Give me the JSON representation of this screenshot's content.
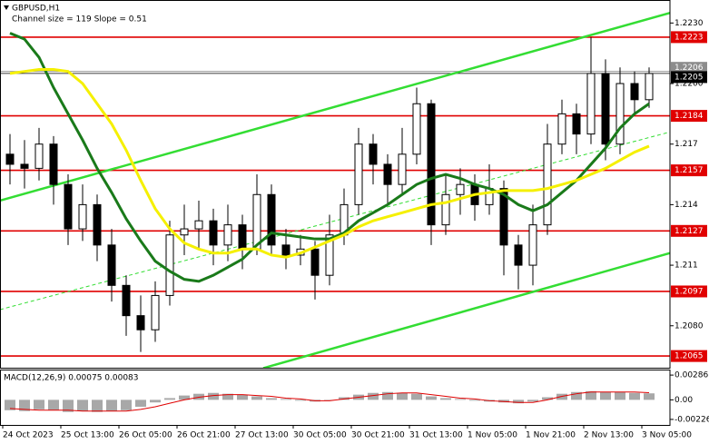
{
  "chart_data": [
    {
      "type": "candlestick",
      "title": "GBPUSD,H1",
      "subtitle": "Channel size = 119 Slope = 0.51",
      "x": [
        "24 Oct 2023",
        null,
        null,
        null,
        "25 Oct 13:00",
        null,
        null,
        null,
        "26 Oct 05:00",
        null,
        null,
        null,
        "26 Oct 21:00",
        null,
        null,
        null,
        "27 Oct 13:00",
        null,
        null,
        null,
        "30 Oct 05:00",
        null,
        null,
        null,
        "30 Oct 21:00",
        null,
        null,
        null,
        "31 Oct 13:00",
        null,
        null,
        null,
        "1 Nov 05:00",
        null,
        null,
        null,
        "1 Nov 21:00",
        null,
        null,
        null,
        "2 Nov 13:00",
        null,
        null,
        null,
        "3 Nov 05:00"
      ],
      "open": [
        1.2165,
        1.216,
        1.2158,
        1.217,
        1.215,
        1.2128,
        1.214,
        1.212,
        1.21,
        1.2085,
        1.2078,
        1.2095,
        1.2125,
        1.2128,
        1.2132,
        1.212,
        1.213,
        1.2118,
        1.2145,
        1.212,
        1.2115,
        1.2118,
        1.2105,
        1.2125,
        1.214,
        1.217,
        1.216,
        1.215,
        1.2165,
        1.219,
        1.213,
        1.2145,
        1.215,
        1.214,
        1.2148,
        1.212,
        1.211,
        1.213,
        1.217,
        1.2185,
        1.2175,
        1.2205,
        1.217,
        1.22,
        1.2192
      ],
      "high": [
        1.2175,
        1.2172,
        1.2178,
        1.2174,
        1.2155,
        1.215,
        1.2145,
        1.2128,
        1.2105,
        1.2095,
        1.2102,
        1.2132,
        1.214,
        1.2142,
        1.2138,
        1.214,
        1.2135,
        1.2155,
        1.215,
        1.2128,
        1.2125,
        1.2122,
        1.2135,
        1.2148,
        1.2178,
        1.2175,
        1.2165,
        1.2178,
        1.2198,
        1.2192,
        1.2155,
        1.2158,
        1.2155,
        1.216,
        1.2152,
        1.2125,
        1.214,
        1.218,
        1.2192,
        1.219,
        1.2223,
        1.2212,
        1.2208,
        1.2206,
        1.2208
      ],
      "low": [
        1.215,
        1.2148,
        1.2152,
        1.214,
        1.212,
        1.2122,
        1.2112,
        1.2092,
        1.2075,
        1.2067,
        1.2072,
        1.209,
        1.2115,
        1.2118,
        1.211,
        1.2112,
        1.2108,
        1.2115,
        1.2115,
        1.2108,
        1.211,
        1.2093,
        1.21,
        1.212,
        1.2135,
        1.215,
        1.214,
        1.2145,
        1.216,
        1.212,
        1.2125,
        1.2135,
        1.2132,
        1.2135,
        1.2105,
        1.2098,
        1.21,
        1.2125,
        1.2165,
        1.2165,
        1.217,
        1.2162,
        1.2165,
        1.2185,
        1.2188
      ],
      "close": [
        1.216,
        1.2158,
        1.217,
        1.215,
        1.2128,
        1.214,
        1.212,
        1.21,
        1.2085,
        1.2078,
        1.2095,
        1.2125,
        1.2128,
        1.2132,
        1.212,
        1.213,
        1.2118,
        1.2145,
        1.212,
        1.2115,
        1.2118,
        1.2105,
        1.2125,
        1.214,
        1.217,
        1.216,
        1.215,
        1.2165,
        1.219,
        1.213,
        1.2145,
        1.215,
        1.214,
        1.2148,
        1.212,
        1.211,
        1.213,
        1.217,
        1.2185,
        1.2175,
        1.2205,
        1.217,
        1.22,
        1.2192,
        1.2205
      ],
      "moving_averages": [
        {
          "color": "#1a7a1a",
          "values": [
            1.2225,
            1.2222,
            1.2213,
            1.2198,
            1.2185,
            1.2172,
            1.2158,
            1.2146,
            1.2133,
            1.2122,
            1.2112,
            1.2107,
            1.2103,
            1.2102,
            1.2105,
            1.2109,
            1.2113,
            1.212,
            1.2126,
            1.2125,
            1.2124,
            1.2123,
            1.2123,
            1.2126,
            1.2132,
            1.2136,
            1.214,
            1.2145,
            1.215,
            1.2153,
            1.2155,
            1.2153,
            1.215,
            1.2148,
            1.2145,
            1.214,
            1.2137,
            1.214,
            1.2146,
            1.2152,
            1.216,
            1.2168,
            1.2178,
            1.2185,
            1.219
          ]
        },
        {
          "color": "#f5f000",
          "values": [
            1.2205,
            1.2206,
            1.2207,
            1.2207,
            1.2206,
            1.22,
            1.219,
            1.218,
            1.2167,
            1.2152,
            1.2138,
            1.2128,
            1.2121,
            1.2118,
            1.2116,
            1.2116,
            1.2118,
            1.2118,
            1.2115,
            1.2114,
            1.2116,
            1.2119,
            1.2122,
            1.2125,
            1.2129,
            1.2132,
            1.2134,
            1.2136,
            1.2138,
            1.214,
            1.2141,
            1.2143,
            1.2145,
            1.2146,
            1.2147,
            1.2147,
            1.2147,
            1.2148,
            1.215,
            1.2152,
            1.2155,
            1.2158,
            1.2162,
            1.2166,
            1.2169
          ]
        }
      ],
      "trendlines": [
        {
          "color": "#33dd33",
          "dashed": false,
          "start": [
            -0.69,
            1.2142
          ],
          "end": [
            45.44,
            1.2235
          ]
        },
        {
          "color": "#33dd33",
          "dashed": false,
          "start": [
            17.44,
            1.2059
          ],
          "end": [
            45.44,
            1.2116
          ]
        },
        {
          "color": "#33dd33",
          "dashed": true,
          "start": [
            -0.69,
            1.2088
          ],
          "end": [
            45.44,
            1.2176
          ]
        }
      ],
      "levels": [
        {
          "value": 1.2223,
          "color": "#e00000"
        },
        {
          "value": 1.2184,
          "color": "#e00000"
        },
        {
          "value": 1.2157,
          "color": "#e00000"
        },
        {
          "value": 1.2127,
          "color": "#e00000"
        },
        {
          "value": 1.2097,
          "color": "#e00000"
        },
        {
          "value": 1.2065,
          "color": "#e00000"
        }
      ],
      "price_lines": [
        {
          "value": 1.2206,
          "color": "#8c8c8c"
        },
        {
          "value": 1.2205,
          "color": "#000000"
        }
      ],
      "ylim": [
        1.20592,
        1.22414
      ],
      "yticks": [
        {
          "value": 1.223,
          "label": "1.2230"
        },
        {
          "value": 1.22,
          "label": "1.2200"
        },
        1.217,
        1.214,
        1.211,
        {
          "value": 1.208,
          "label": "1.2080"
        }
      ]
    },
    {
      "type": "macd",
      "title": "MACD(12,26,9) 0.00075 0.00083",
      "histogram_color": "#a8a8a8",
      "signal_color": "#e00000",
      "histogram": [
        -0.0012,
        -0.0013,
        -0.0011,
        -0.0012,
        -0.0014,
        -0.0013,
        -0.0014,
        -0.0013,
        -0.0012,
        -0.0008,
        -0.0003,
        0.0002,
        0.0005,
        0.0007,
        0.0008,
        0.0007,
        0.0006,
        0.0004,
        0.0002,
        0.0001,
        -0.0001,
        -0.0002,
        0.0,
        0.0003,
        0.0006,
        0.0008,
        0.0009,
        0.0008,
        0.0007,
        0.0004,
        0.0002,
        0.0001,
        -0.0001,
        -0.0002,
        -0.0003,
        -0.0004,
        -0.0002,
        0.0003,
        0.0007,
        0.0009,
        0.001,
        0.0009,
        0.0009,
        0.0008,
        0.00075
      ],
      "signal": [
        -0.001,
        -0.0011,
        -0.0012,
        -0.0012,
        -0.0012,
        -0.0013,
        -0.0013,
        -0.0013,
        -0.0013,
        -0.0011,
        -0.0008,
        -0.0004,
        0.0,
        0.0003,
        0.0005,
        0.0006,
        0.0006,
        0.0005,
        0.0004,
        0.0002,
        0.0001,
        -0.0001,
        -0.0001,
        0.0001,
        0.0003,
        0.0005,
        0.0007,
        0.0008,
        0.0008,
        0.0006,
        0.0004,
        0.0002,
        0.0001,
        -0.0001,
        -0.0002,
        -0.0003,
        -0.0003,
        0.0,
        0.0004,
        0.0007,
        0.0009,
        0.0009,
        0.0009,
        0.0009,
        0.00083
      ],
      "ylim": [
        -0.0029,
        0.0035
      ],
      "yticks": [
        0.00286,
        {
          "value": 0,
          "label": "0.00"
        },
        -0.00226
      ]
    }
  ]
}
